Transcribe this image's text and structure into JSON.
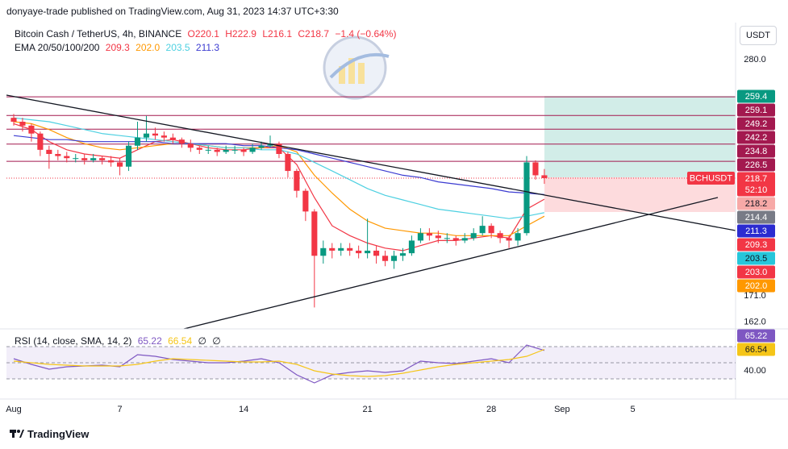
{
  "header": {
    "published": "donyaye-trade published on TradingView.com, Aug 31, 2023 14:37 UTC+3:30"
  },
  "footer": {
    "brand": "TradingView"
  },
  "chart_data": [
    {
      "type": "candlestick",
      "title": "Bitcoin Cash / TetherUS, 4h, BINANCE",
      "ohlc_labels": [
        "O220.1",
        "H222.9",
        "L216.1",
        "C218.7",
        "−1.4 (−0.64%)"
      ],
      "currency": "USDT",
      "indicator": "EMA 20/50/100/200",
      "log_scale": true,
      "xlim": [
        0.59,
        41.81
      ],
      "xticks": [
        {
          "value": 1,
          "label": "Aug"
        },
        7,
        14,
        21,
        28,
        {
          "value": 32,
          "label": "Sep"
        },
        {
          "value": 36,
          "label": "5"
        }
      ],
      "ylim": [
        159.7,
        302.5
      ],
      "yticks": [
        {
          "value": 280,
          "label": "280.0"
        },
        {
          "value": 171,
          "label": "171.0"
        },
        {
          "value": 162,
          "label": "162.0"
        }
      ],
      "up_color": "#089981",
      "down_color": "#f23645",
      "x": [
        1,
        1.5,
        2,
        2.5,
        3,
        3.5,
        4,
        4.5,
        5,
        5.5,
        6,
        6.5,
        7,
        7.5,
        8,
        8.5,
        9,
        9.5,
        10,
        10.5,
        11,
        11.5,
        12,
        12.5,
        13,
        13.5,
        14,
        14.5,
        15,
        15.5,
        16,
        16.5,
        17,
        17.5,
        18,
        18.5,
        19,
        19.5,
        20,
        20.5,
        21,
        21.5,
        22,
        22.5,
        23,
        23.5,
        24,
        24.5,
        25,
        25.5,
        26,
        26.5,
        27,
        27.5,
        28,
        28.5,
        29,
        29.5,
        30,
        30.5,
        31
      ],
      "open": [
        248,
        246,
        244,
        240,
        232,
        230,
        229,
        228,
        228,
        227,
        228,
        227,
        226,
        224,
        234,
        238,
        240,
        239,
        238,
        237,
        235,
        233,
        232,
        232,
        231,
        232,
        232,
        231,
        233,
        234,
        235,
        230,
        222,
        213,
        204,
        186,
        189,
        188,
        189,
        188,
        187,
        188,
        186,
        184,
        186,
        187,
        192,
        195,
        194,
        193,
        193,
        192,
        193,
        195,
        198,
        195,
        193,
        192,
        195,
        226,
        220
      ],
      "high": [
        250,
        248,
        245,
        241,
        234,
        232,
        231,
        230,
        230,
        230,
        229,
        229,
        228,
        236,
        246,
        249,
        243,
        241,
        240,
        238,
        237,
        234,
        234,
        233,
        234,
        234,
        233,
        235,
        236,
        239,
        236,
        231,
        223,
        214,
        205,
        192,
        191,
        191,
        191,
        190,
        201,
        190,
        188,
        188,
        189,
        194,
        197,
        197,
        196,
        195,
        194,
        195,
        197,
        202,
        199,
        196,
        194,
        197,
        229,
        227,
        222.9
      ],
      "low": [
        244,
        241,
        236,
        229,
        223,
        227,
        226,
        226,
        225,
        226,
        225,
        224,
        220,
        222,
        232,
        236,
        237,
        236,
        235,
        233,
        231,
        230,
        230,
        229,
        230,
        230,
        229,
        230,
        232,
        233,
        228,
        219,
        210,
        200,
        167,
        183,
        185,
        186,
        186,
        185,
        185,
        183,
        182,
        181,
        184,
        186,
        191,
        192,
        191,
        191,
        190,
        191,
        192,
        194,
        193,
        191,
        189,
        190,
        194,
        218,
        216.1
      ],
      "close": [
        246,
        244,
        240,
        232,
        230,
        229,
        228,
        228,
        227,
        228,
        227,
        226,
        224,
        234,
        238,
        240,
        239,
        238,
        237,
        235,
        233,
        232,
        232,
        231,
        232,
        232,
        231,
        233,
        234,
        235,
        230,
        222,
        213,
        204,
        186,
        189,
        188,
        189,
        188,
        187,
        188,
        186,
        184,
        186,
        187,
        192,
        195,
        194,
        193,
        193,
        192,
        193,
        195,
        198,
        195,
        193,
        192,
        195,
        226,
        220,
        218.7
      ],
      "series": [
        {
          "color": "#f23645",
          "value_label": "209.3",
          "x": [
            1,
            2,
            3,
            4,
            5,
            6,
            7,
            8,
            9,
            10,
            11,
            12,
            13,
            14,
            15,
            16,
            17,
            18,
            19,
            20,
            21,
            22,
            23,
            24,
            25,
            26,
            27,
            28,
            29,
            30,
            31
          ],
          "values": [
            245,
            242,
            236,
            232,
            230,
            229,
            228,
            232,
            236,
            237,
            235,
            233,
            232,
            232,
            233,
            233,
            225,
            210,
            198,
            194,
            191,
            189,
            188,
            190,
            192,
            192,
            193,
            194,
            193,
            205,
            209.3
          ]
        },
        {
          "color": "#ff9800",
          "value_label": "202.0",
          "x": [
            1,
            2,
            3,
            4,
            5,
            6,
            7,
            8,
            9,
            10,
            11,
            12,
            13,
            14,
            15,
            16,
            17,
            18,
            19,
            20,
            21,
            22,
            23,
            24,
            25,
            26,
            27,
            28,
            29,
            30,
            31
          ],
          "values": [
            246,
            245,
            242,
            238,
            235,
            233,
            232,
            233,
            234,
            235,
            235,
            234,
            233,
            233,
            233,
            234,
            231,
            220,
            212,
            205,
            200,
            197,
            196,
            195,
            195,
            194,
            194,
            194,
            194,
            198,
            202
          ]
        },
        {
          "color": "#4dd0e1",
          "value_label": "203.5",
          "x": [
            1,
            2,
            3,
            4,
            5,
            6,
            7,
            8,
            9,
            10,
            11,
            12,
            13,
            14,
            15,
            16,
            17,
            18,
            19,
            20,
            21,
            22,
            23,
            24,
            25,
            26,
            27,
            28,
            29,
            30,
            31
          ],
          "values": [
            248,
            247,
            246,
            244,
            242,
            240,
            239,
            238,
            237,
            236,
            235,
            234,
            233,
            233,
            232,
            232,
            230,
            226,
            222,
            218,
            214,
            211,
            209,
            207,
            205,
            204,
            203,
            202,
            201,
            202,
            203.5
          ]
        },
        {
          "color": "#3b3bd1",
          "value_label": "211.3",
          "x": [
            1,
            2,
            3,
            4,
            5,
            6,
            7,
            8,
            9,
            10,
            11,
            12,
            13,
            14,
            15,
            16,
            17,
            18,
            19,
            20,
            21,
            22,
            23,
            24,
            25,
            26,
            27,
            28,
            29,
            30,
            31
          ],
          "values": [
            239,
            238,
            237,
            237,
            236,
            236,
            236,
            236,
            236,
            235,
            235,
            235,
            235,
            234,
            234,
            233,
            232,
            230,
            228,
            226,
            224,
            222,
            220,
            219,
            217,
            216,
            215,
            214,
            212.5,
            212,
            211.3
          ]
        }
      ],
      "price_labels": [
        {
          "value": 259.4,
          "label": "259.4",
          "color": "#089981"
        },
        {
          "value": 259.1,
          "label": "259.1",
          "color": "#a3194f",
          "line": true
        },
        {
          "value": 249.2,
          "label": "249.2",
          "color": "#a3194f",
          "line": true
        },
        {
          "value": 242.2,
          "label": "242.2",
          "color": "#a3194f",
          "line": true
        },
        {
          "value": 234.8,
          "label": "234.8",
          "color": "#a3194f",
          "line": true
        },
        {
          "value": 226.5,
          "label": "226.5",
          "color": "#a3194f",
          "line": true
        },
        {
          "value": 218.7,
          "label": "218.7",
          "color": "#f23645",
          "line": true,
          "symbol": "BCHUSDT",
          "countdown": "52:10"
        },
        {
          "value": 218.2,
          "label": "218.2",
          "color": "#f7a9a7",
          "text_color": "#131722"
        },
        {
          "value": 214.4,
          "label": "214.4",
          "color": "#787b86"
        },
        {
          "value": 211.3,
          "label": "211.3",
          "color": "#2b2bd0"
        },
        {
          "value": 209.3,
          "label": "209.3",
          "color": "#f23645"
        },
        {
          "value": 203.5,
          "label": "203.5",
          "color": "#26c6da",
          "text_color": "#131722"
        },
        {
          "value": 203.0,
          "label": "203.0",
          "color": "#f23645"
        },
        {
          "value": 202.0,
          "label": "202.0",
          "color": "#ff9800"
        }
      ]
    },
    {
      "type": "rsi",
      "title": "RSI (14, close, SMA, 14, 2)",
      "na_labels": [
        "∅",
        "∅"
      ],
      "xlim": [
        0.59,
        41.81
      ],
      "ylim": [
        10,
        90
      ],
      "yticks": [
        {
          "value": 40,
          "label": "40.00"
        }
      ],
      "levels": [
        70,
        50,
        30
      ],
      "series": [
        {
          "color": "#7e57c2",
          "value_label": "65.22",
          "x": [
            1,
            2,
            3,
            4,
            5,
            6,
            7,
            8,
            9,
            10,
            11,
            12,
            13,
            14,
            15,
            16,
            17,
            18,
            19,
            20,
            21,
            22,
            23,
            24,
            25,
            26,
            27,
            28,
            29,
            30,
            31
          ],
          "values": [
            55,
            48,
            42,
            45,
            46,
            47,
            45,
            60,
            58,
            54,
            52,
            50,
            50,
            52,
            55,
            50,
            35,
            25,
            35,
            38,
            40,
            38,
            40,
            52,
            50,
            49,
            52,
            55,
            50,
            72,
            65.22
          ]
        },
        {
          "color": "#f5c518",
          "value_label": "66.54",
          "x": [
            1,
            2,
            3,
            4,
            5,
            6,
            7,
            8,
            9,
            10,
            11,
            12,
            13,
            14,
            15,
            16,
            17,
            18,
            19,
            20,
            21,
            22,
            23,
            24,
            25,
            26,
            27,
            28,
            29,
            30,
            31
          ],
          "values": [
            52,
            50,
            48,
            47,
            46,
            46,
            46,
            48,
            52,
            55,
            54,
            53,
            52,
            51,
            51,
            52,
            48,
            40,
            36,
            34,
            33,
            34,
            37,
            41,
            45,
            48,
            50,
            52,
            54,
            58,
            66.54
          ]
        }
      ]
    }
  ]
}
